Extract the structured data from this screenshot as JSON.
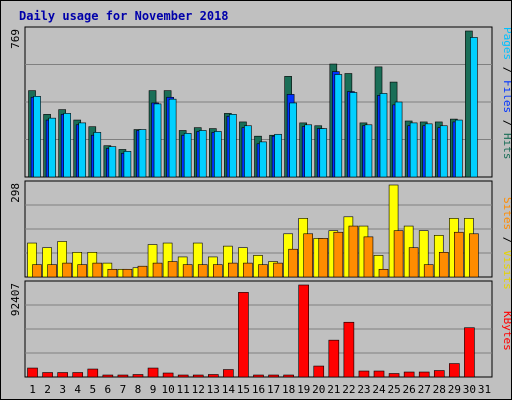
{
  "chart_data": {
    "type": "bar",
    "title": "Daily usage for November 2018",
    "days": [
      "1",
      "2",
      "3",
      "4",
      "5",
      "6",
      "7",
      "8",
      "9",
      "10",
      "11",
      "12",
      "13",
      "14",
      "15",
      "16",
      "17",
      "18",
      "19",
      "20",
      "21",
      "22",
      "23",
      "24",
      "25",
      "26",
      "27",
      "28",
      "29",
      "30",
      "31"
    ],
    "weekend_days": [
      "3",
      "4",
      "10",
      "11",
      "17",
      "18",
      "24",
      "25",
      "31"
    ],
    "panels": [
      {
        "id": "hits-files-pages",
        "max_label": "769",
        "ymax": 769,
        "series": [
          {
            "name": "Hits",
            "color": "#1a6e57",
            "values": [
              455,
              330,
              355,
              300,
              265,
              165,
              145,
              250,
              455,
              455,
              245,
              260,
              255,
              335,
              290,
              215,
              220,
              530,
              285,
              270,
              595,
              545,
              285,
              580,
              500,
              295,
              290,
              290,
              305,
              769,
              null
            ]
          },
          {
            "name": "Files",
            "color": "#0033ff",
            "values": [
              420,
              300,
              330,
              275,
              220,
              150,
              125,
              245,
              390,
              420,
              220,
              240,
              235,
              320,
              260,
              175,
              215,
              435,
              265,
              255,
              555,
              450,
              270,
              430,
              380,
              270,
              270,
              260,
              290,
              null,
              null
            ]
          },
          {
            "name": "Pages",
            "color": "#00d0ff",
            "values": [
              425,
              310,
              335,
              285,
              235,
              160,
              135,
              250,
              385,
              410,
              230,
              245,
              240,
              330,
              270,
              185,
              225,
              390,
              275,
              255,
              540,
              445,
              275,
              440,
              395,
              285,
              280,
              270,
              300,
              735,
              null
            ]
          }
        ]
      },
      {
        "id": "visits-sites",
        "max_label": "298",
        "ymax": 298,
        "series": [
          {
            "name": "Visits",
            "color": "#ffff00",
            "values": [
              110,
              95,
              115,
              80,
              80,
              45,
              25,
              30,
              105,
              110,
              65,
              110,
              65,
              100,
              95,
              70,
              50,
              140,
              190,
              125,
              150,
              195,
              165,
              70,
              298,
              165,
              150,
              135,
              190,
              190,
              null
            ]
          },
          {
            "name": "Sites",
            "color": "#ff8c00",
            "values": [
              40,
              40,
              45,
              40,
              45,
              25,
              25,
              35,
              45,
              50,
              40,
              40,
              40,
              45,
              45,
              40,
              45,
              90,
              140,
              125,
              145,
              165,
              130,
              25,
              150,
              95,
              40,
              80,
              145,
              140,
              null
            ]
          }
        ]
      },
      {
        "id": "kbytes",
        "max_label": "92407",
        "ymax": 92407,
        "series": [
          {
            "name": "KBytes",
            "color": "#ff0000",
            "values": [
              9000,
              4500,
              4500,
              4500,
              8000,
              2000,
              2000,
              2500,
              9000,
              4000,
              2000,
              2000,
              2500,
              7500,
              85000,
              2000,
              2000,
              2000,
              92407,
              11000,
              37000,
              55000,
              6000,
              6000,
              3500,
              5000,
              5000,
              6500,
              13500,
              49500,
              null
            ]
          }
        ]
      }
    ],
    "right_labels": {
      "top": [
        {
          "text": "Pages",
          "color": "#00c0ff"
        },
        {
          "text": " / ",
          "color": "#000000"
        },
        {
          "text": "Files",
          "color": "#0033ff"
        },
        {
          "text": " / ",
          "color": "#000000"
        },
        {
          "text": "Hits",
          "color": "#1a6e57"
        }
      ],
      "middle": [
        {
          "text": "Sites",
          "color": "#ff8c00"
        },
        {
          "text": " / ",
          "color": "#000000"
        },
        {
          "text": "Visits",
          "color": "#e6d300"
        }
      ],
      "bottom": [
        {
          "text": "KBytes",
          "color": "#ff0000"
        }
      ]
    },
    "colors": {
      "background": "#c0c0c0",
      "panel_border": "#000000",
      "gridline": "#808080",
      "weekday_label": "#000000",
      "weekend_label": "#00a000",
      "title": "#0000aa"
    }
  }
}
